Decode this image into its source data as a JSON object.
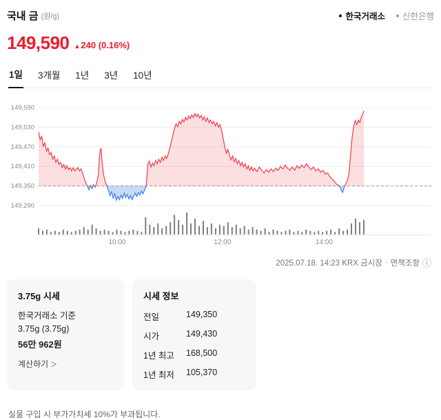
{
  "header": {
    "title": "국내 금",
    "unit": "(원/g)",
    "sources": [
      {
        "label": "한국거래소",
        "active": true
      },
      {
        "label": "신한은행",
        "active": false
      }
    ]
  },
  "price": {
    "current": "149,590",
    "change": "240 (0.16%)",
    "direction": "up"
  },
  "icons": {
    "up_arrow": "▲",
    "info": "ⓘ",
    "chevron_right": "＞"
  },
  "tabs": [
    {
      "label": "1일",
      "active": true
    },
    {
      "label": "3개월",
      "active": false
    },
    {
      "label": "1년",
      "active": false
    },
    {
      "label": "3년",
      "active": false
    },
    {
      "label": "10년",
      "active": false
    }
  ],
  "chart_meta": {
    "timestamp": "2025.07.18. 14:23 KRX 금시장",
    "separator": "·",
    "disclaimer": "면책조항"
  },
  "cards": {
    "unit_price": {
      "title": "3.75g 시세",
      "line1": "한국거래소 기준",
      "line2": "3.75g (3.75g)",
      "value": "56만 962원",
      "link": "계산하기"
    },
    "quote_info": {
      "title": "시세 정보",
      "rows": [
        {
          "label": "전일",
          "value": "149,350"
        },
        {
          "label": "시가",
          "value": "149,430"
        },
        {
          "label": "1년 최고",
          "value": "168,500"
        },
        {
          "label": "1년 최저",
          "value": "105,370"
        }
      ]
    }
  },
  "footnote": "실물 구입 시 부가가치세 10%가 부과됩니다.",
  "colors": {
    "accent": "#ee1c2e",
    "up_line": "#ef3d47",
    "up_fill": "rgba(238,55,70,0.16)",
    "down_line": "#3d7ce8",
    "down_fill": "rgba(64,120,224,0.28)",
    "baseline": "#9b9b9b",
    "grid": "#ececec",
    "volume": "#7d7d7d",
    "axis_text": "#8b8b8b"
  },
  "chart_data": {
    "type": "area",
    "title": "국내 금 1일 가격 추이 (원/g)",
    "baseline": 149350,
    "baseline_label": "149,350",
    "ylim": [
      149290,
      149590
    ],
    "y_ticks": [
      {
        "label": "149,590",
        "value": 149590
      },
      {
        "label": "149,530",
        "value": 149530
      },
      {
        "label": "149,470",
        "value": 149470
      },
      {
        "label": "149,410",
        "value": 149410
      },
      {
        "label": "149,350",
        "value": 149350
      },
      {
        "label": "149,290",
        "value": 149290
      }
    ],
    "x_ticks": [
      {
        "label": "10:00",
        "f": 0.2
      },
      {
        "label": "12:00",
        "f": 0.468
      },
      {
        "label": "14:00",
        "f": 0.727
      }
    ],
    "data_end_fraction": 0.828,
    "points": [
      [
        0.0,
        149515
      ],
      [
        0.004,
        149492
      ],
      [
        0.008,
        149502
      ],
      [
        0.012,
        149472
      ],
      [
        0.016,
        149482
      ],
      [
        0.02,
        149456
      ],
      [
        0.024,
        149466
      ],
      [
        0.028,
        149446
      ],
      [
        0.032,
        149452
      ],
      [
        0.036,
        149432
      ],
      [
        0.04,
        149442
      ],
      [
        0.044,
        149422
      ],
      [
        0.048,
        149432
      ],
      [
        0.052,
        149416
      ],
      [
        0.056,
        149422
      ],
      [
        0.06,
        149406
      ],
      [
        0.064,
        149416
      ],
      [
        0.068,
        149402
      ],
      [
        0.072,
        149412
      ],
      [
        0.076,
        149400
      ],
      [
        0.08,
        149406
      ],
      [
        0.084,
        149396
      ],
      [
        0.088,
        149406
      ],
      [
        0.092,
        149396
      ],
      [
        0.096,
        149402
      ],
      [
        0.1,
        149406
      ],
      [
        0.104,
        149396
      ],
      [
        0.108,
        149402
      ],
      [
        0.112,
        149390
      ],
      [
        0.116,
        149374
      ],
      [
        0.12,
        149360
      ],
      [
        0.124,
        149350
      ],
      [
        0.128,
        149338
      ],
      [
        0.132,
        149352
      ],
      [
        0.136,
        149342
      ],
      [
        0.14,
        149354
      ],
      [
        0.144,
        149346
      ],
      [
        0.148,
        149360
      ],
      [
        0.152,
        149382
      ],
      [
        0.156,
        149452
      ],
      [
        0.159,
        149466
      ],
      [
        0.162,
        149420
      ],
      [
        0.166,
        149382
      ],
      [
        0.17,
        149362
      ],
      [
        0.174,
        149350
      ],
      [
        0.178,
        149336
      ],
      [
        0.182,
        149320
      ],
      [
        0.186,
        149332
      ],
      [
        0.19,
        149312
      ],
      [
        0.194,
        149326
      ],
      [
        0.198,
        149306
      ],
      [
        0.202,
        149318
      ],
      [
        0.206,
        149308
      ],
      [
        0.21,
        149322
      ],
      [
        0.214,
        149312
      ],
      [
        0.218,
        149328
      ],
      [
        0.222,
        149314
      ],
      [
        0.226,
        149324
      ],
      [
        0.23,
        149310
      ],
      [
        0.234,
        149320
      ],
      [
        0.238,
        149308
      ],
      [
        0.242,
        149318
      ],
      [
        0.246,
        149328
      ],
      [
        0.25,
        149318
      ],
      [
        0.254,
        149330
      ],
      [
        0.258,
        149322
      ],
      [
        0.262,
        149334
      ],
      [
        0.266,
        149326
      ],
      [
        0.27,
        149338
      ],
      [
        0.274,
        149348
      ],
      [
        0.278,
        149416
      ],
      [
        0.282,
        149426
      ],
      [
        0.286,
        149408
      ],
      [
        0.29,
        149420
      ],
      [
        0.294,
        149412
      ],
      [
        0.298,
        149428
      ],
      [
        0.302,
        149418
      ],
      [
        0.306,
        149432
      ],
      [
        0.31,
        149422
      ],
      [
        0.314,
        149438
      ],
      [
        0.318,
        149428
      ],
      [
        0.322,
        149442
      ],
      [
        0.326,
        149434
      ],
      [
        0.33,
        149448
      ],
      [
        0.334,
        149466
      ],
      [
        0.338,
        149486
      ],
      [
        0.342,
        149506
      ],
      [
        0.346,
        149526
      ],
      [
        0.35,
        149540
      ],
      [
        0.354,
        149532
      ],
      [
        0.358,
        149548
      ],
      [
        0.362,
        149540
      ],
      [
        0.366,
        149554
      ],
      [
        0.37,
        149546
      ],
      [
        0.374,
        149560
      ],
      [
        0.378,
        149552
      ],
      [
        0.382,
        149564
      ],
      [
        0.386,
        149556
      ],
      [
        0.39,
        149568
      ],
      [
        0.394,
        149560
      ],
      [
        0.398,
        149572
      ],
      [
        0.402,
        149562
      ],
      [
        0.406,
        149570
      ],
      [
        0.41,
        149558
      ],
      [
        0.414,
        149566
      ],
      [
        0.418,
        149552
      ],
      [
        0.422,
        149562
      ],
      [
        0.426,
        149548
      ],
      [
        0.43,
        149558
      ],
      [
        0.434,
        149544
      ],
      [
        0.438,
        149552
      ],
      [
        0.442,
        149540
      ],
      [
        0.446,
        149548
      ],
      [
        0.45,
        149534
      ],
      [
        0.454,
        149544
      ],
      [
        0.458,
        149530
      ],
      [
        0.462,
        149538
      ],
      [
        0.466,
        149520
      ],
      [
        0.47,
        149496
      ],
      [
        0.474,
        149470
      ],
      [
        0.478,
        149450
      ],
      [
        0.482,
        149462
      ],
      [
        0.486,
        149444
      ],
      [
        0.49,
        149430
      ],
      [
        0.494,
        149442
      ],
      [
        0.498,
        149424
      ],
      [
        0.502,
        149434
      ],
      [
        0.506,
        149418
      ],
      [
        0.51,
        149428
      ],
      [
        0.514,
        149412
      ],
      [
        0.518,
        149422
      ],
      [
        0.522,
        149408
      ],
      [
        0.526,
        149418
      ],
      [
        0.53,
        149402
      ],
      [
        0.534,
        149412
      ],
      [
        0.538,
        149398
      ],
      [
        0.542,
        149408
      ],
      [
        0.546,
        149396
      ],
      [
        0.55,
        149404
      ],
      [
        0.556,
        149394
      ],
      [
        0.562,
        149408
      ],
      [
        0.568,
        149398
      ],
      [
        0.574,
        149390
      ],
      [
        0.58,
        149400
      ],
      [
        0.586,
        149392
      ],
      [
        0.592,
        149402
      ],
      [
        0.598,
        149394
      ],
      [
        0.604,
        149404
      ],
      [
        0.61,
        149398
      ],
      [
        0.616,
        149410
      ],
      [
        0.622,
        149402
      ],
      [
        0.628,
        149414
      ],
      [
        0.634,
        149404
      ],
      [
        0.64,
        149398
      ],
      [
        0.646,
        149408
      ],
      [
        0.652,
        149398
      ],
      [
        0.658,
        149412
      ],
      [
        0.664,
        149404
      ],
      [
        0.67,
        149414
      ],
      [
        0.676,
        149406
      ],
      [
        0.682,
        149418
      ],
      [
        0.688,
        149408
      ],
      [
        0.694,
        149400
      ],
      [
        0.7,
        149408
      ],
      [
        0.706,
        149396
      ],
      [
        0.712,
        149402
      ],
      [
        0.718,
        149392
      ],
      [
        0.724,
        149398
      ],
      [
        0.73,
        149386
      ],
      [
        0.736,
        149390
      ],
      [
        0.742,
        149378
      ],
      [
        0.748,
        149370
      ],
      [
        0.754,
        149362
      ],
      [
        0.76,
        149354
      ],
      [
        0.766,
        149350
      ],
      [
        0.77,
        149340
      ],
      [
        0.774,
        149330
      ],
      [
        0.778,
        149346
      ],
      [
        0.782,
        149356
      ],
      [
        0.786,
        149366
      ],
      [
        0.79,
        149386
      ],
      [
        0.794,
        149440
      ],
      [
        0.798,
        149496
      ],
      [
        0.802,
        149530
      ],
      [
        0.806,
        149550
      ],
      [
        0.81,
        149538
      ],
      [
        0.814,
        149552
      ],
      [
        0.818,
        149544
      ],
      [
        0.822,
        149562
      ],
      [
        0.826,
        149572
      ],
      [
        0.828,
        149580
      ]
    ],
    "volume": [
      5,
      3,
      4,
      2,
      3,
      2,
      4,
      3,
      2,
      3,
      4,
      6,
      4,
      8,
      5,
      3,
      4,
      3,
      2,
      4,
      3,
      2,
      3,
      4,
      3,
      2,
      14,
      8,
      6,
      9,
      5,
      7,
      10,
      16,
      12,
      8,
      18,
      9,
      13,
      7,
      11,
      6,
      9,
      5,
      8,
      7,
      10,
      6,
      8,
      5,
      7,
      4,
      6,
      4,
      3,
      5,
      2,
      4,
      3,
      2,
      3,
      4,
      2,
      3,
      2,
      4,
      3,
      2,
      3,
      2,
      3,
      4,
      2,
      5,
      3,
      4,
      9,
      13,
      10,
      12
    ]
  }
}
